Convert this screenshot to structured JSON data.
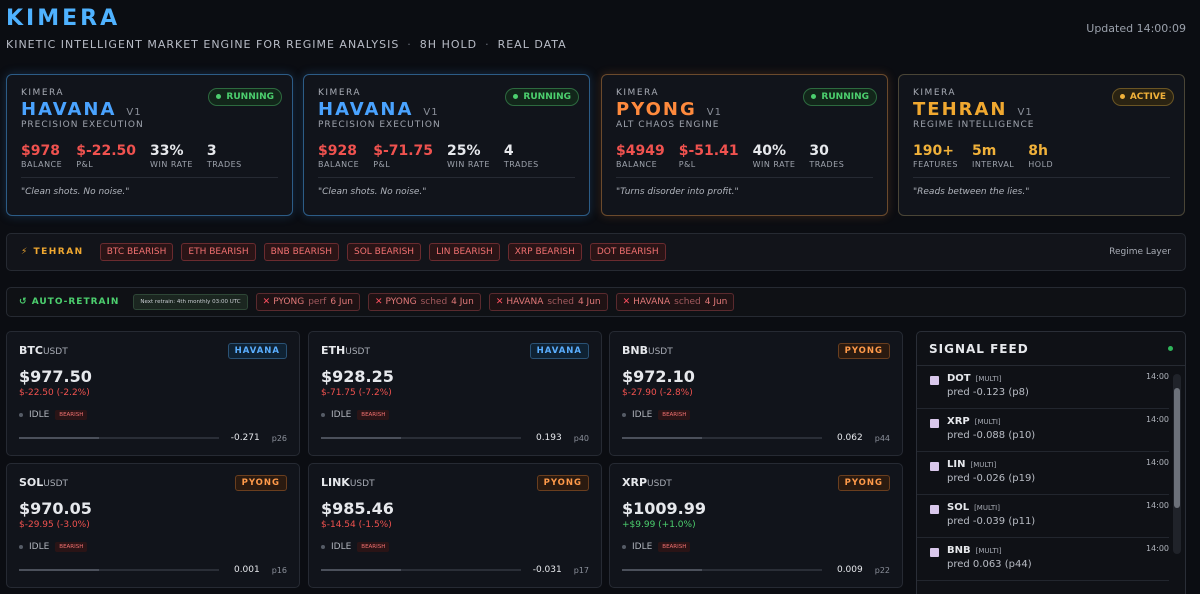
{
  "header": {
    "title": "KIMERA",
    "subtitle": [
      "KINETIC INTELLIGENT MARKET ENGINE FOR REGIME ANALYSIS",
      "8H HOLD",
      "REAL DATA"
    ],
    "updated": "Updated 14:00:09"
  },
  "engines": [
    {
      "brand": "KIMERA",
      "name": "HAVANA",
      "version": "V1",
      "status": "RUNNING",
      "role": "PRECISION EXECUTION",
      "stats": [
        {
          "value": "$978",
          "label": "BALANCE"
        },
        {
          "value": "$-22.50",
          "label": "P&L"
        },
        {
          "value": "33%",
          "label": "WIN RATE"
        },
        {
          "value": "3",
          "label": "TRADES"
        }
      ],
      "quote": "\"Clean shots. No noise.\""
    },
    {
      "brand": "KIMERA",
      "name": "HAVANA",
      "version": "V1",
      "status": "RUNNING",
      "role": "PRECISION EXECUTION",
      "stats": [
        {
          "value": "$928",
          "label": "BALANCE"
        },
        {
          "value": "$-71.75",
          "label": "P&L"
        },
        {
          "value": "25%",
          "label": "WIN RATE"
        },
        {
          "value": "4",
          "label": "TRADES"
        }
      ],
      "quote": "\"Clean shots. No noise.\""
    },
    {
      "brand": "KIMERA",
      "name": "PYONG",
      "version": "V1",
      "status": "RUNNING",
      "role": "ALT CHAOS ENGINE",
      "stats": [
        {
          "value": "$4949",
          "label": "BALANCE"
        },
        {
          "value": "$-51.41",
          "label": "P&L"
        },
        {
          "value": "40%",
          "label": "WIN RATE"
        },
        {
          "value": "30",
          "label": "TRADES"
        }
      ],
      "quote": "\"Turns disorder into profit.\""
    },
    {
      "brand": "KIMERA",
      "name": "TEHRAN",
      "version": "V1",
      "status": "ACTIVE",
      "role": "REGIME INTELLIGENCE",
      "stats": [
        {
          "value": "190+",
          "label": "FEATURES"
        },
        {
          "value": "5m",
          "label": "INTERVAL"
        },
        {
          "value": "8h",
          "label": "HOLD"
        }
      ],
      "quote": "\"Reads between the lies.\""
    }
  ],
  "regime": {
    "label": "TEHRAN",
    "tags": [
      "BTC BEARISH",
      "ETH BEARISH",
      "BNB BEARISH",
      "SOL BEARISH",
      "LIN BEARISH",
      "XRP BEARISH",
      "DOT BEARISH"
    ],
    "layer": "Regime Layer"
  },
  "retrain": {
    "label": "AUTO-RETRAIN",
    "note": "Next retrain: 4th monthly 03:00 UTC",
    "items": [
      {
        "model": "PYONG",
        "kind": "perf",
        "date": "6 Jun"
      },
      {
        "model": "PYONG",
        "kind": "sched",
        "date": "4 Jun"
      },
      {
        "model": "HAVANA",
        "kind": "sched",
        "date": "4 Jun"
      },
      {
        "model": "HAVANA",
        "kind": "sched",
        "date": "4 Jun"
      }
    ]
  },
  "markets": [
    {
      "base": "BTC",
      "quote": "USDT",
      "engine": "HAVANA",
      "price": "$977.50",
      "change": "$-22.50 (-2.2%)",
      "state": "IDLE",
      "regime": "BEARISH",
      "score": "-0.271",
      "pct": "p26"
    },
    {
      "base": "ETH",
      "quote": "USDT",
      "engine": "HAVANA",
      "price": "$928.25",
      "change": "$-71.75 (-7.2%)",
      "state": "IDLE",
      "regime": "BEARISH",
      "score": "0.193",
      "pct": "p40"
    },
    {
      "base": "BNB",
      "quote": "USDT",
      "engine": "PYONG",
      "price": "$972.10",
      "change": "$-27.90 (-2.8%)",
      "state": "IDLE",
      "regime": "BEARISH",
      "score": "0.062",
      "pct": "p44"
    },
    {
      "base": "SOL",
      "quote": "USDT",
      "engine": "PYONG",
      "price": "$970.05",
      "change": "$-29.95 (-3.0%)",
      "state": "IDLE",
      "regime": "BEARISH",
      "score": "0.001",
      "pct": "p16"
    },
    {
      "base": "LINK",
      "quote": "USDT",
      "engine": "PYONG",
      "price": "$985.46",
      "change": "$-14.54 (-1.5%)",
      "state": "IDLE",
      "regime": "BEARISH",
      "score": "-0.031",
      "pct": "p17"
    },
    {
      "base": "XRP",
      "quote": "USDT",
      "engine": "PYONG",
      "price": "$1009.99",
      "change": "+$9.99 (+1.0%)",
      "state": "IDLE",
      "regime": "BEARISH",
      "score": "0.009",
      "pct": "p22"
    }
  ],
  "feed": {
    "title": "SIGNAL FEED",
    "items": [
      {
        "symbol": "DOT",
        "tag": "[MULTI]",
        "pred": "pred -0.123 (p8)",
        "time": "14:00"
      },
      {
        "symbol": "XRP",
        "tag": "[MULTI]",
        "pred": "pred -0.088 (p10)",
        "time": "14:00"
      },
      {
        "symbol": "LIN",
        "tag": "[MULTI]",
        "pred": "pred -0.026 (p19)",
        "time": "14:00"
      },
      {
        "symbol": "SOL",
        "tag": "[MULTI]",
        "pred": "pred -0.039 (p11)",
        "time": "14:00"
      },
      {
        "symbol": "BNB",
        "tag": "[MULTI]",
        "pred": "pred 0.063 (p44)",
        "time": "14:00"
      }
    ]
  }
}
